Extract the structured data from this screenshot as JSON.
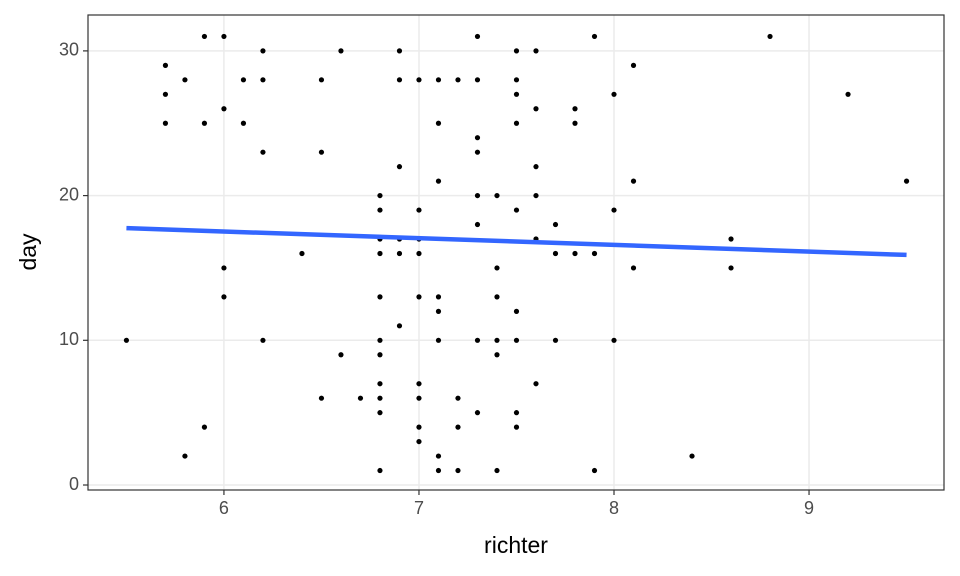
{
  "chart_data": {
    "type": "scatter",
    "x_label": "richter",
    "y_label": "day",
    "xlim": [
      5.303,
      9.692
    ],
    "ylim": [
      -0.345,
      32.48
    ],
    "xticks": [
      6,
      7,
      8,
      9
    ],
    "yticks": [
      0,
      10,
      20,
      30
    ],
    "grid": true,
    "series": [
      {
        "color": "#000000",
        "x": [
          5.5,
          5.7,
          5.7,
          5.7,
          5.8,
          5.8,
          5.9,
          5.9,
          5.9,
          6.0,
          6.0,
          6.0,
          6.0,
          6.1,
          6.1,
          6.2,
          6.2,
          6.2,
          6.2,
          6.4,
          6.5,
          6.5,
          6.5,
          6.6,
          6.6,
          6.7,
          6.8,
          6.8,
          6.8,
          6.8,
          6.8,
          6.8,
          6.8,
          6.8,
          6.8,
          6.8,
          6.8,
          6.9,
          6.9,
          6.9,
          6.9,
          6.9,
          6.9,
          7.0,
          7.0,
          7.0,
          7.0,
          7.0,
          7.0,
          7.0,
          7.0,
          7.0,
          7.1,
          7.1,
          7.1,
          7.1,
          7.1,
          7.1,
          7.1,
          7.1,
          7.2,
          7.2,
          7.2,
          7.2,
          7.3,
          7.3,
          7.3,
          7.3,
          7.3,
          7.3,
          7.3,
          7.3,
          7.4,
          7.4,
          7.4,
          7.4,
          7.4,
          7.4,
          7.5,
          7.5,
          7.5,
          7.5,
          7.5,
          7.5,
          7.5,
          7.5,
          7.5,
          7.6,
          7.6,
          7.6,
          7.6,
          7.6,
          7.6,
          7.7,
          7.7,
          7.7,
          7.8,
          7.8,
          7.8,
          7.9,
          7.9,
          7.9,
          8.0,
          8.0,
          8.0,
          8.1,
          8.1,
          8.1,
          8.4,
          8.6,
          8.6,
          8.8,
          9.2,
          9.5
        ],
        "values": [
          10,
          29,
          27,
          25,
          28,
          2,
          31,
          25,
          4,
          31,
          26,
          15,
          13,
          28,
          25,
          30,
          28,
          23,
          10,
          16,
          28,
          23,
          6,
          30,
          9,
          6,
          20,
          19,
          17,
          16,
          13,
          10,
          9,
          7,
          6,
          5,
          1,
          30,
          28,
          22,
          17,
          16,
          11,
          28,
          19,
          17,
          16,
          13,
          7,
          6,
          4,
          3,
          28,
          25,
          21,
          13,
          12,
          10,
          2,
          1,
          28,
          6,
          4,
          1,
          31,
          28,
          24,
          23,
          20,
          18,
          10,
          5,
          20,
          15,
          13,
          10,
          9,
          1,
          30,
          28,
          27,
          25,
          19,
          12,
          10,
          5,
          4,
          30,
          26,
          22,
          20,
          17,
          7,
          18,
          16,
          10,
          26,
          25,
          16,
          31,
          16,
          1,
          27,
          19,
          10,
          29,
          21,
          15,
          2,
          17,
          15,
          31,
          27,
          21
        ]
      }
    ],
    "trend": {
      "color": "#3366ff",
      "x": [
        5.5,
        9.5
      ],
      "values": [
        17.75,
        15.9
      ]
    }
  }
}
